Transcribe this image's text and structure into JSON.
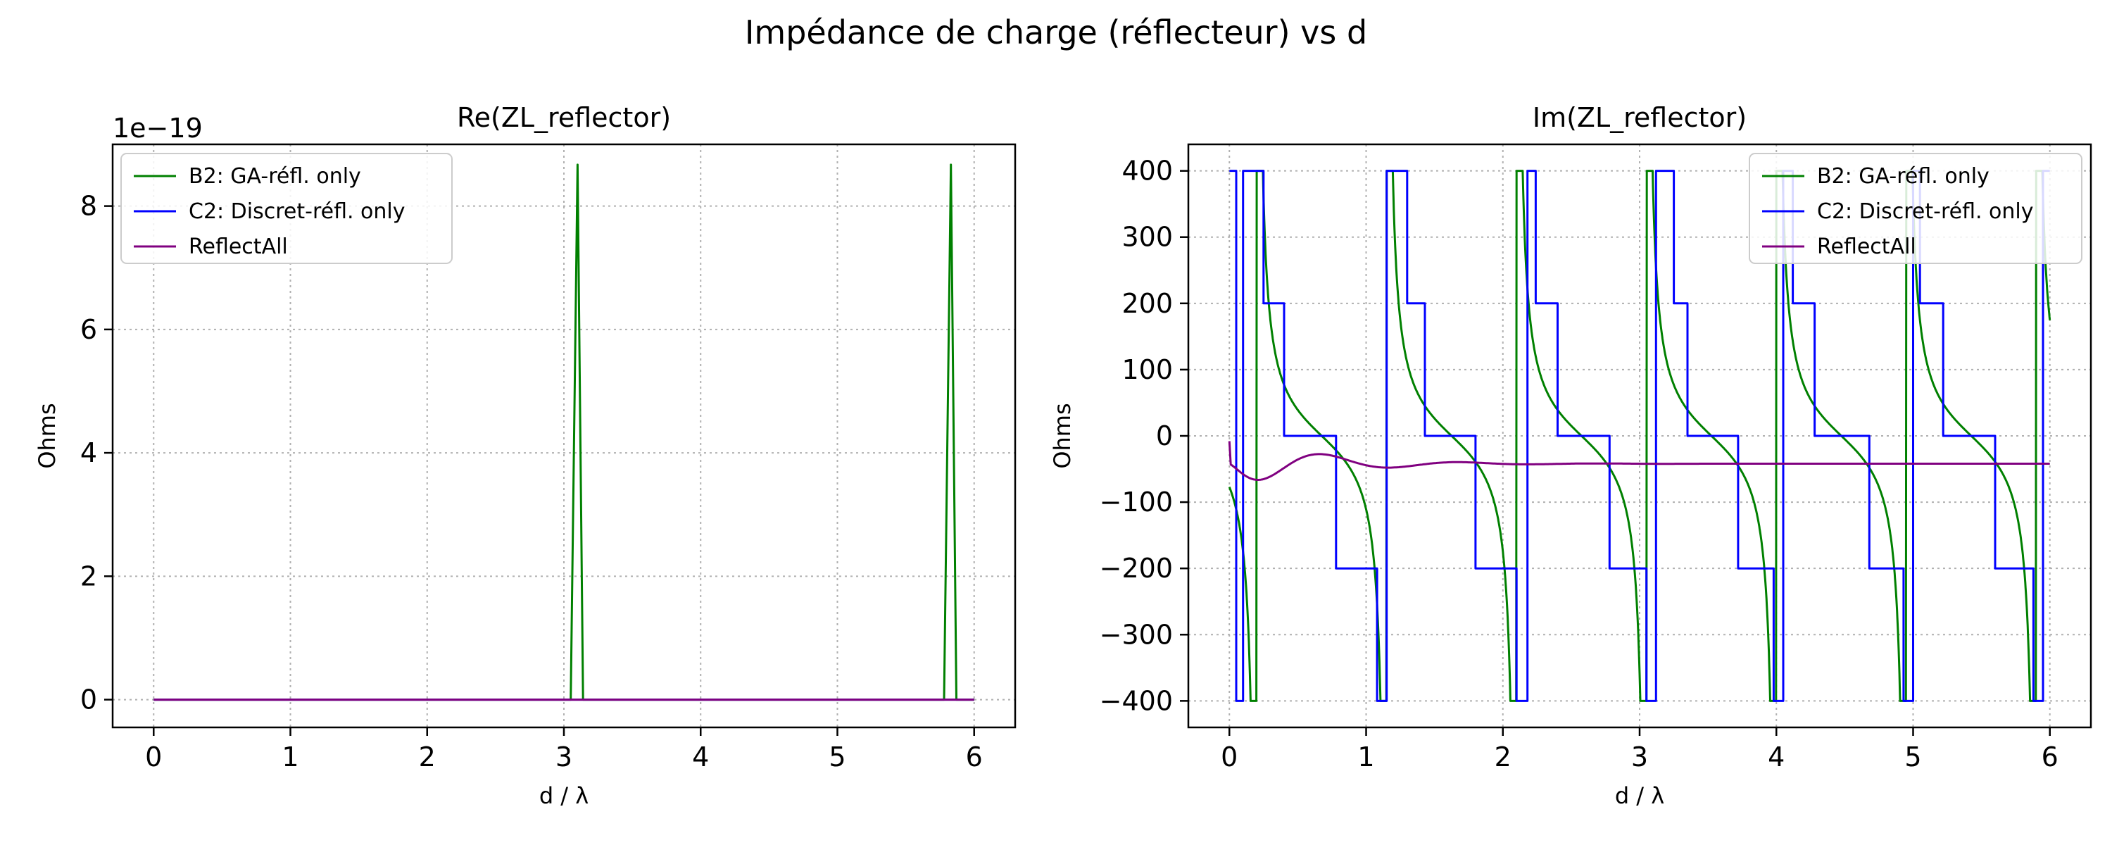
{
  "chart_data": {
    "suptitle": "Impédance de charge (réflecteur) vs d",
    "charts": [
      {
        "type": "line",
        "title": "Re(ZL_reflector)",
        "xlabel": "d / λ",
        "ylabel": "Ohms",
        "offset_text": "1e−19",
        "xlim": [
          -0.3,
          6.3
        ],
        "ylim": [
          -0.45,
          9.0
        ],
        "xticks": [
          0,
          1,
          2,
          3,
          4,
          5,
          6
        ],
        "yticks": [
          0,
          2,
          4,
          6,
          8
        ],
        "grid": true,
        "legend_position": "upper-left",
        "series": [
          {
            "name": "B2: GA-réfl. only",
            "color": "#008000",
            "points": [
              [
                0,
                0
              ],
              [
                3.05,
                0
              ],
              [
                3.1,
                8.67
              ],
              [
                3.14,
                0
              ],
              [
                5.78,
                0
              ],
              [
                5.83,
                8.67
              ],
              [
                5.87,
                0
              ],
              [
                6,
                0
              ]
            ]
          },
          {
            "name": "C2: Discret-réfl. only",
            "color": "#0000ff",
            "points": [
              [
                0,
                0
              ],
              [
                6,
                0
              ]
            ]
          },
          {
            "name": "ReflectAll",
            "color": "#800080",
            "points": [
              [
                0,
                0
              ],
              [
                6,
                0
              ]
            ]
          }
        ]
      },
      {
        "type": "line",
        "title": "Im(ZL_reflector)",
        "xlabel": "d / λ",
        "ylabel": "Ohms",
        "xlim": [
          -0.3,
          6.3
        ],
        "ylim": [
          -440,
          440
        ],
        "xticks": [
          0,
          1,
          2,
          3,
          4,
          5,
          6
        ],
        "yticks": [
          -400,
          -300,
          -200,
          -100,
          0,
          100,
          200,
          300,
          400
        ],
        "grid": true,
        "legend_position": "upper-right",
        "series": [
          {
            "name": "B2: GA-réfl. only",
            "color": "#008000",
            "kind": "tan",
            "period": 0.95,
            "first_asymptote": 0.2,
            "scale": 60,
            "clip": 400
          },
          {
            "name": "C2: Discret-réfl. only",
            "color": "#0000ff",
            "kind": "step",
            "points": [
              [
                0,
                400
              ],
              [
                0.05,
                400
              ],
              [
                0.05,
                -400
              ],
              [
                0.1,
                -400
              ],
              [
                0.1,
                400
              ],
              [
                0.25,
                400
              ],
              [
                0.25,
                200
              ],
              [
                0.4,
                200
              ],
              [
                0.4,
                0
              ],
              [
                0.78,
                0
              ],
              [
                0.78,
                -200
              ],
              [
                1.08,
                -200
              ],
              [
                1.08,
                -400
              ],
              [
                1.15,
                -400
              ],
              [
                1.15,
                400
              ],
              [
                1.3,
                400
              ],
              [
                1.3,
                200
              ],
              [
                1.43,
                200
              ],
              [
                1.43,
                0
              ],
              [
                1.8,
                0
              ],
              [
                1.8,
                -200
              ],
              [
                2.1,
                -200
              ],
              [
                2.1,
                -400
              ],
              [
                2.18,
                -400
              ],
              [
                2.18,
                400
              ],
              [
                2.24,
                400
              ],
              [
                2.24,
                200
              ],
              [
                2.4,
                200
              ],
              [
                2.4,
                0
              ],
              [
                2.78,
                0
              ],
              [
                2.78,
                -200
              ],
              [
                3.05,
                -200
              ],
              [
                3.05,
                -400
              ],
              [
                3.12,
                -400
              ],
              [
                3.12,
                400
              ],
              [
                3.25,
                400
              ],
              [
                3.25,
                200
              ],
              [
                3.35,
                200
              ],
              [
                3.35,
                0
              ],
              [
                3.72,
                0
              ],
              [
                3.72,
                -200
              ],
              [
                3.98,
                -200
              ],
              [
                3.98,
                -400
              ],
              [
                4.05,
                -400
              ],
              [
                4.05,
                400
              ],
              [
                4.12,
                400
              ],
              [
                4.12,
                200
              ],
              [
                4.28,
                200
              ],
              [
                4.28,
                0
              ],
              [
                4.68,
                0
              ],
              [
                4.68,
                -200
              ],
              [
                4.93,
                -200
              ],
              [
                4.93,
                -400
              ],
              [
                5.0,
                -400
              ],
              [
                5.0,
                400
              ],
              [
                5.05,
                400
              ],
              [
                5.05,
                200
              ],
              [
                5.22,
                200
              ],
              [
                5.22,
                0
              ],
              [
                5.6,
                0
              ],
              [
                5.6,
                -200
              ],
              [
                5.88,
                -200
              ],
              [
                5.88,
                -400
              ],
              [
                5.95,
                -400
              ],
              [
                5.95,
                400
              ],
              [
                6.0,
                400
              ]
            ]
          },
          {
            "name": "ReflectAll",
            "color": "#800080",
            "kind": "damped",
            "base": -42,
            "amp": -50,
            "decay": 1.8,
            "freq": 6.2
          }
        ]
      }
    ]
  }
}
